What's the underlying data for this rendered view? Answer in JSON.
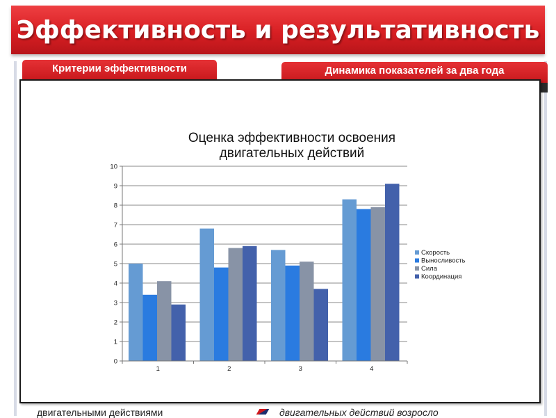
{
  "header": {
    "title": "Эффективность и результативность"
  },
  "tabs": {
    "left_label": "Критерии эффективности",
    "right_label": "Динамика показателей за два года"
  },
  "footer": {
    "left_text": "двигательными действиями",
    "right_text": "двигательных действий возросло"
  },
  "colors": {
    "title_red": "#d81f23",
    "series": [
      "#659bd3",
      "#2a7be0",
      "#8893a6",
      "#4361ab"
    ]
  },
  "chart_data": {
    "type": "bar",
    "title_line1": "Оценка эффективности освоения",
    "title_line2": "двигательных действий",
    "categories": [
      "1",
      "2",
      "3",
      "4"
    ],
    "series": [
      {
        "name": "Скорость",
        "values": [
          5,
          6.8,
          5.7,
          8.3
        ]
      },
      {
        "name": "Выносливость",
        "values": [
          3.4,
          4.8,
          4.9,
          7.8
        ]
      },
      {
        "name": "Сила",
        "values": [
          4.1,
          5.8,
          5.1,
          7.9
        ]
      },
      {
        "name": "Координация",
        "values": [
          2.9,
          5.9,
          3.7,
          9.1
        ]
      }
    ],
    "ylim": [
      0,
      10
    ],
    "yticks": [
      "0",
      "1",
      "2",
      "3",
      "4",
      "5",
      "6",
      "7",
      "8",
      "9",
      "10"
    ],
    "grid": true,
    "legend": "right"
  }
}
